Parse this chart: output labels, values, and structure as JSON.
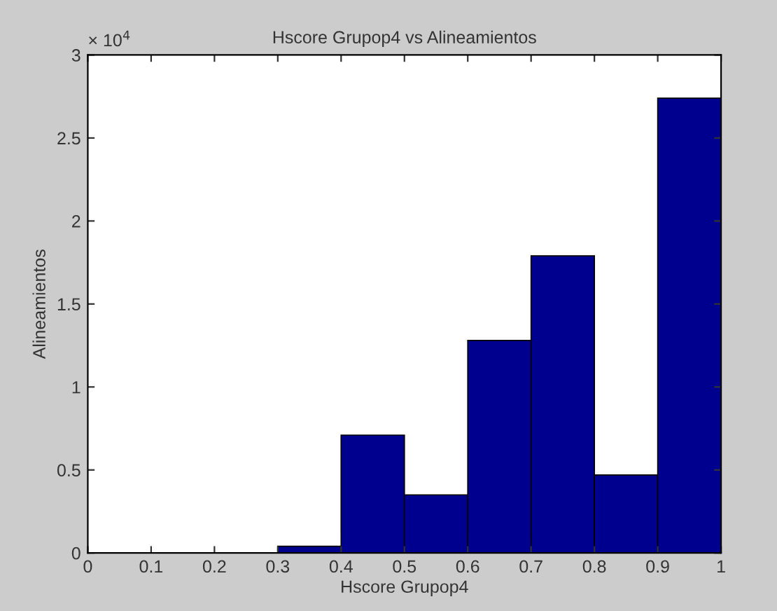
{
  "chart_data": {
    "type": "histogram",
    "title": "Hscore Grupop4 vs Alineamientos",
    "xlabel": "Hscore Grupop4",
    "ylabel": "Alineamientos",
    "bins": [
      0,
      0.1,
      0.2,
      0.3,
      0.4,
      0.5,
      0.6,
      0.7,
      0.8,
      0.9,
      1
    ],
    "values": [
      0,
      0,
      0,
      0.04,
      0.71,
      0.35,
      1.28,
      1.79,
      0.47,
      2.74
    ],
    "color": "#00008f",
    "xlim": [
      0,
      1
    ],
    "xticks": [
      0,
      0.1,
      0.2,
      0.3,
      0.4,
      0.5,
      0.6,
      0.7,
      0.8,
      0.9,
      1
    ],
    "ylim": [
      0,
      3
    ],
    "yticks": [
      0,
      0.5,
      1,
      1.5,
      2,
      2.5,
      3
    ],
    "annotations": [
      "× 10$^{4}$"
    ],
    "grid": false
  }
}
